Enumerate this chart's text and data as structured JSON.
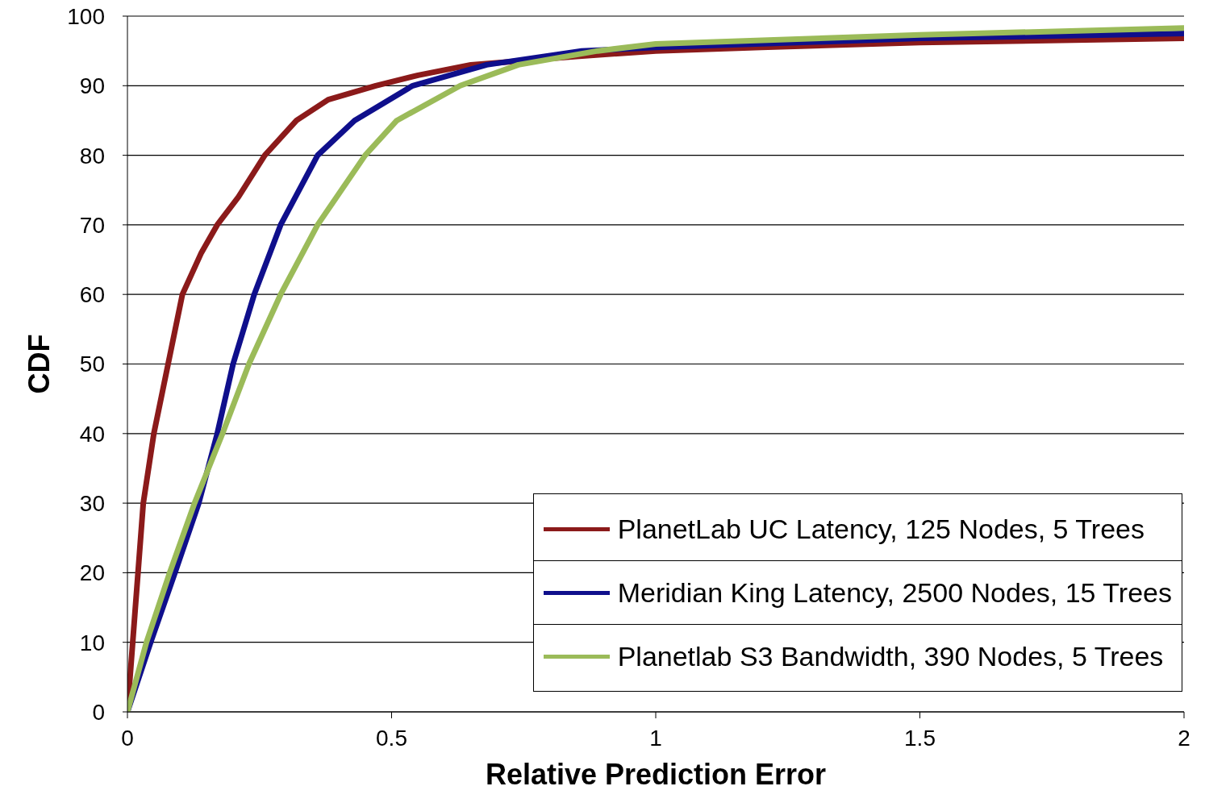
{
  "chart_data": {
    "type": "line",
    "xlabel": "Relative Prediction Error",
    "ylabel": "CDF",
    "xlim": [
      0,
      2
    ],
    "xticks": [
      0,
      0.5,
      1,
      1.5,
      2
    ],
    "ylim": [
      0,
      100
    ],
    "yticks": [
      0,
      10,
      20,
      30,
      40,
      50,
      60,
      70,
      80,
      90,
      100
    ],
    "grid": "y",
    "legend": "bottom right",
    "marker": "none",
    "line_style": "solid",
    "series": [
      {
        "name": "PlanetLab UC Latency, 125 Nodes, 5 Trees",
        "color": "#8b1a1a",
        "x": [
          0,
          0.01,
          0.02,
          0.03,
          0.05,
          0.077,
          0.104,
          0.14,
          0.17,
          0.21,
          0.26,
          0.32,
          0.38,
          0.47,
          0.55,
          0.65,
          0.75,
          0.85,
          1,
          1.2,
          1.5,
          2
        ],
        "values": [
          0,
          10,
          20,
          30,
          40,
          50,
          60,
          66,
          70,
          74,
          80,
          85,
          88,
          90,
          91.5,
          93,
          93.6,
          94.2,
          95,
          95.5,
          96.2,
          96.8
        ]
      },
      {
        "name": "Meridian King Latency, 2500 Nodes, 15 Trees",
        "color": "#0f0f8c",
        "x": [
          0,
          0.044,
          0.09,
          0.135,
          0.17,
          0.2,
          0.24,
          0.29,
          0.36,
          0.43,
          0.54,
          0.68,
          0.86,
          1,
          1.5,
          2
        ],
        "values": [
          0,
          10,
          20,
          30,
          40,
          50,
          60,
          70,
          80,
          85,
          90,
          93,
          95,
          95.5,
          96.8,
          97.5
        ]
      },
      {
        "name": "Planetlab S3 Bandwidth, 390 Nodes, 5 Trees",
        "color": "#9bbb59",
        "x": [
          0,
          0.036,
          0.08,
          0.127,
          0.18,
          0.23,
          0.29,
          0.36,
          0.45,
          0.51,
          0.63,
          0.74,
          0.89,
          1,
          1.5,
          2
        ],
        "values": [
          0,
          10,
          20,
          30,
          40,
          50,
          60,
          70,
          80,
          85,
          90,
          93,
          95,
          96,
          97.3,
          98.3
        ]
      }
    ]
  }
}
